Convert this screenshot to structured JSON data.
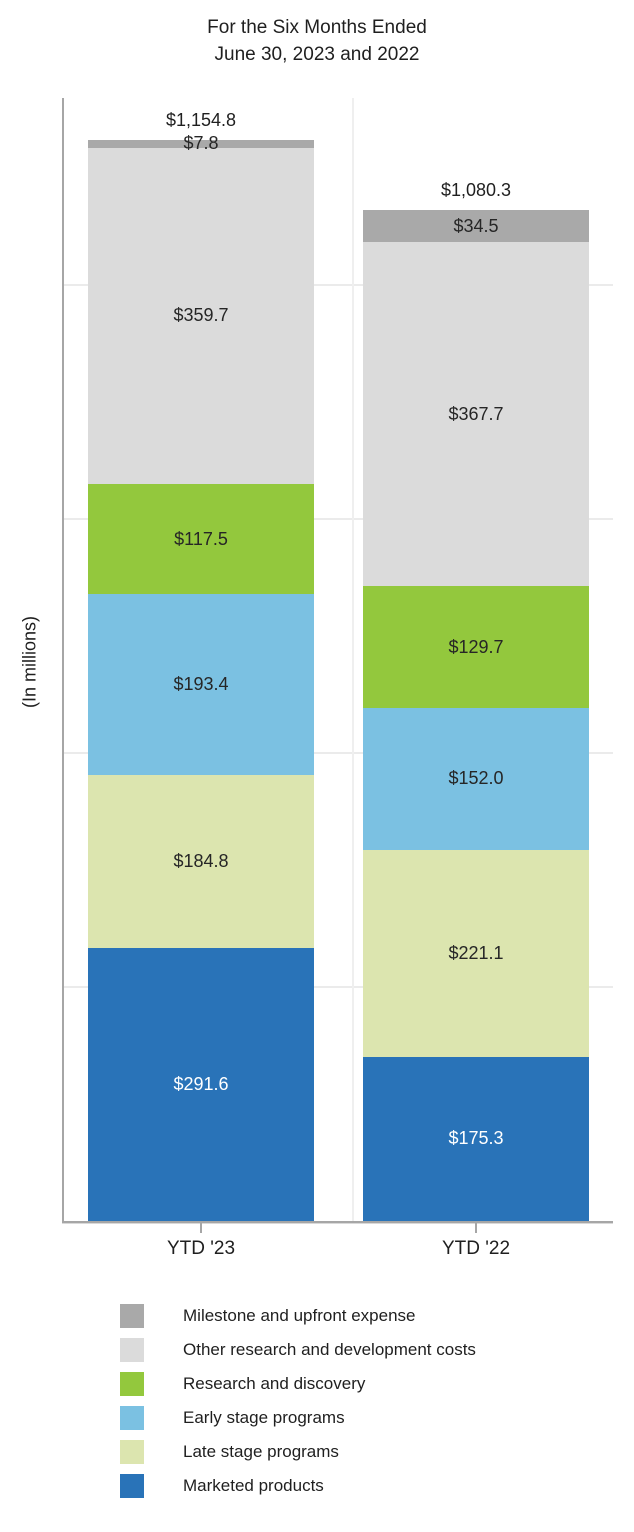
{
  "title": {
    "line1": "For the Six Months Ended",
    "line2": "June 30, 2023 and 2022"
  },
  "y_axis_label": "(In millions)",
  "chart_data": {
    "type": "bar",
    "stacked": true,
    "title": "For the Six Months Ended June 30, 2023 and 2022",
    "ylabel": "(In millions)",
    "categories": [
      "YTD '23",
      "YTD '22"
    ],
    "ylim": [
      0,
      1200
    ],
    "gridline_interval": 250,
    "grid": true,
    "legend_position": "bottom",
    "totals": {
      "values": [
        1154.8,
        1080.3
      ],
      "labels": [
        "$1,154.8",
        "$1,080.3"
      ]
    },
    "series": [
      {
        "name": "Marketed products",
        "color": "#2973b8",
        "values": [
          291.6,
          175.3
        ],
        "labels": [
          "$291.6",
          "$175.3"
        ],
        "label_color": "#ffffff"
      },
      {
        "name": "Late stage programs",
        "color": "#dce5af",
        "values": [
          184.8,
          221.1
        ],
        "labels": [
          "$184.8",
          "$221.1"
        ],
        "label_color": "#262626"
      },
      {
        "name": "Early stage programs",
        "color": "#7bc1e2",
        "values": [
          193.4,
          152.0
        ],
        "labels": [
          "$193.4",
          "$152.0"
        ],
        "label_color": "#262626"
      },
      {
        "name": "Research and discovery",
        "color": "#93c83d",
        "values": [
          117.5,
          129.7
        ],
        "labels": [
          "$117.5",
          "$129.7"
        ],
        "label_color": "#262626"
      },
      {
        "name": "Other research and development costs",
        "color": "#dbdbdb",
        "values": [
          359.7,
          367.7
        ],
        "labels": [
          "$359.7",
          "$367.7"
        ],
        "label_color": "#262626"
      },
      {
        "name": "Milestone and upfront expense",
        "color": "#a9a9a9",
        "values": [
          7.8,
          34.5
        ],
        "labels": [
          "$7.8",
          "$34.5"
        ],
        "label_color": "#262626"
      }
    ]
  },
  "legend": {
    "items": [
      {
        "label": "Milestone and upfront expense",
        "color": "#a9a9a9"
      },
      {
        "label": "Other research and development costs",
        "color": "#dbdbdb"
      },
      {
        "label": "Research and discovery",
        "color": "#93c83d"
      },
      {
        "label": "Early stage programs",
        "color": "#7bc1e2"
      },
      {
        "label": "Late stage programs",
        "color": "#dce5af"
      },
      {
        "label": "Marketed products",
        "color": "#2973b8"
      }
    ]
  },
  "colors": {
    "axis": "#a6a6a6",
    "gridline": "#ebebeb",
    "text": "#1f1f1f"
  }
}
